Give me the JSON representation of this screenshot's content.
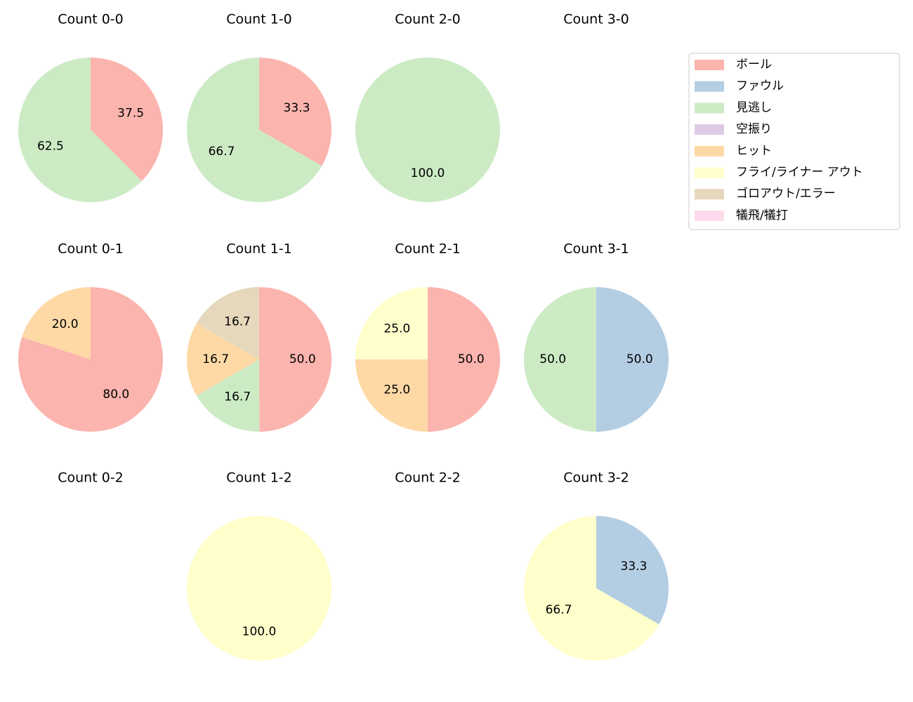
{
  "chart_data": [
    {
      "type": "pie",
      "title": "Count 0-0",
      "categories": [
        "ボール",
        "見逃し"
      ],
      "values": [
        37.5,
        62.5
      ],
      "value_labels": [
        "37.5",
        "62.5"
      ],
      "colors": [
        "#fbb4ae",
        "#ccebc5"
      ]
    },
    {
      "type": "pie",
      "title": "Count 1-0",
      "categories": [
        "ボール",
        "見逃し"
      ],
      "values": [
        33.3,
        66.7
      ],
      "value_labels": [
        "33.3",
        "66.7"
      ],
      "colors": [
        "#fbb4ae",
        "#ccebc5"
      ]
    },
    {
      "type": "pie",
      "title": "Count 2-0",
      "categories": [
        "見逃し"
      ],
      "values": [
        100
      ],
      "value_labels": [
        "100.0"
      ],
      "colors": [
        "#ccebc5"
      ]
    },
    {
      "type": "pie",
      "title": "Count 3-0",
      "categories": [],
      "values": [],
      "value_labels": [],
      "colors": []
    },
    {
      "type": "pie",
      "title": "Count 0-1",
      "categories": [
        "ボール",
        "ヒット"
      ],
      "values": [
        80,
        20
      ],
      "value_labels": [
        "80.0",
        "20.0"
      ],
      "colors": [
        "#fbb4ae",
        "#fed9a6"
      ]
    },
    {
      "type": "pie",
      "title": "Count 1-1",
      "categories": [
        "ボール",
        "見逃し",
        "ヒット",
        "ゴロアウト/エラー"
      ],
      "values": [
        50,
        16.7,
        16.7,
        16.7
      ],
      "value_labels": [
        "50.0",
        "16.7",
        "16.7",
        "16.7"
      ],
      "colors": [
        "#fbb4ae",
        "#ccebc5",
        "#fed9a6",
        "#e5d8bd"
      ]
    },
    {
      "type": "pie",
      "title": "Count 2-1",
      "categories": [
        "ボール",
        "ヒット",
        "フライ/ライナー アウト"
      ],
      "values": [
        50,
        25,
        25
      ],
      "value_labels": [
        "50.0",
        "25.0",
        "25.0"
      ],
      "colors": [
        "#fbb4ae",
        "#fed9a6",
        "#ffffcc"
      ]
    },
    {
      "type": "pie",
      "title": "Count 3-1",
      "categories": [
        "ファウル",
        "見逃し"
      ],
      "values": [
        50,
        50
      ],
      "value_labels": [
        "50.0",
        "50.0"
      ],
      "colors": [
        "#b3cde3",
        "#ccebc5"
      ]
    },
    {
      "type": "pie",
      "title": "Count 0-2",
      "categories": [],
      "values": [],
      "value_labels": [],
      "colors": []
    },
    {
      "type": "pie",
      "title": "Count 1-2",
      "categories": [
        "フライ/ライナー アウト"
      ],
      "values": [
        100
      ],
      "value_labels": [
        "100.0"
      ],
      "colors": [
        "#ffffcc"
      ]
    },
    {
      "type": "pie",
      "title": "Count 2-2",
      "categories": [],
      "values": [],
      "value_labels": [],
      "colors": []
    },
    {
      "type": "pie",
      "title": "Count 3-2",
      "categories": [
        "ファウル",
        "フライ/ライナー アウト"
      ],
      "values": [
        33.3,
        66.7
      ],
      "value_labels": [
        "33.3",
        "66.7"
      ],
      "colors": [
        "#b3cde3",
        "#ffffcc"
      ]
    }
  ],
  "legend": {
    "labels": [
      "ボール",
      "ファウル",
      "見逃し",
      "空振り",
      "ヒット",
      "フライ/ライナー アウト",
      "ゴロアウト/エラー",
      "犠飛/犠打"
    ],
    "colors": [
      "#fbb4ae",
      "#b3cde3",
      "#ccebc5",
      "#decbe4",
      "#fed9a6",
      "#ffffcc",
      "#e5d8bd",
      "#fddaec"
    ]
  }
}
